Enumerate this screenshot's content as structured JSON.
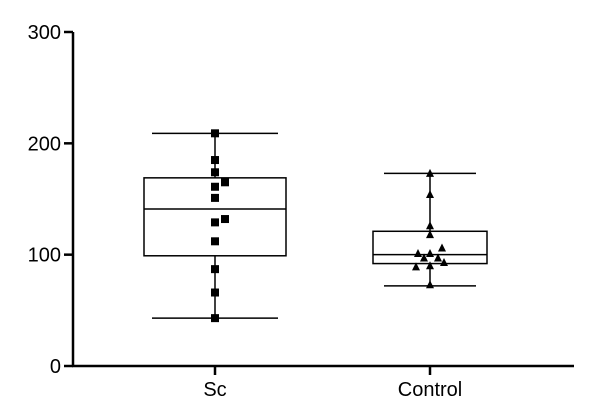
{
  "chart_data": {
    "type": "box",
    "title": "",
    "xlabel": "",
    "ylabel": "",
    "ylim": [
      0,
      300
    ],
    "yticks": [
      0,
      100,
      200,
      300
    ],
    "grid": false,
    "legend": "none",
    "categories": [
      "Sc",
      "Control"
    ],
    "series": [
      {
        "marker": "square",
        "box": {
          "min": 43,
          "q1": 99,
          "median": 141,
          "q3": 169,
          "max": 209
        },
        "points": [
          209,
          185,
          174,
          165,
          161,
          151,
          132,
          129,
          112,
          87,
          66,
          43
        ]
      },
      {
        "marker": "triangle",
        "box": {
          "min": 72,
          "q1": 92,
          "median": 100,
          "q3": 121,
          "max": 173
        },
        "points": [
          173,
          154,
          126,
          118,
          106,
          101,
          101,
          97,
          97,
          93,
          90,
          89,
          73
        ]
      }
    ]
  }
}
